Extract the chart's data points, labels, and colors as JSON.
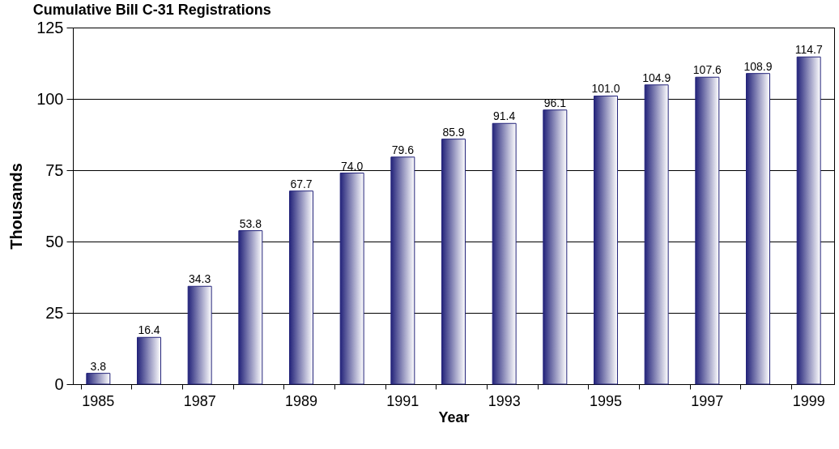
{
  "chart_data": {
    "type": "bar",
    "title": "Cumulative Bill C-31 Registrations",
    "xlabel": "Year",
    "ylabel": "Thousands",
    "categories": [
      "1985",
      null,
      "1987",
      null,
      "1989",
      null,
      "1991",
      null,
      "1993",
      null,
      "1995",
      null,
      "1997",
      null,
      "1999"
    ],
    "values": [
      3.8,
      16.4,
      34.3,
      53.8,
      67.7,
      74.0,
      79.6,
      85.9,
      91.4,
      96.1,
      101.0,
      104.9,
      107.6,
      108.9,
      114.7
    ],
    "value_labels": [
      "3.8",
      "16.4",
      "34.3",
      "53.8",
      "67.7",
      "74.0",
      "79.6",
      "85.9",
      "91.4",
      "96.1",
      "101.0",
      "104.9",
      "107.6",
      "108.9",
      "114.7"
    ],
    "color": "#23237a",
    "ylim": [
      0,
      125
    ],
    "yticks": [
      0,
      25,
      50,
      75,
      100,
      125
    ],
    "grid": "y"
  }
}
